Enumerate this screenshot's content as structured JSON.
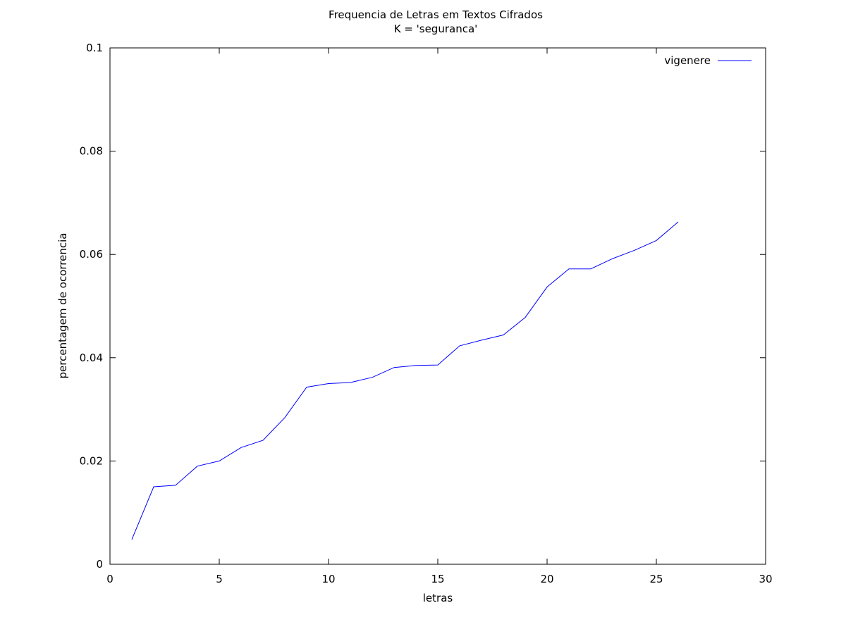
{
  "chart_data": {
    "type": "line",
    "title": "Frequencia de Letras em Textos Cifrados",
    "subtitle": "K = 'seguranca'",
    "xlabel": "letras",
    "ylabel": "percentagem de ocorrencia",
    "xlim": [
      0,
      30
    ],
    "ylim": [
      0,
      0.1
    ],
    "xticks": [
      "0",
      "5",
      "10",
      "15",
      "20",
      "25",
      "30"
    ],
    "yticks": [
      "0",
      "0.02",
      "0.04",
      "0.06",
      "0.08",
      "0.1"
    ],
    "grid": false,
    "legend_position": "top-right",
    "series": [
      {
        "name": "vigenere",
        "color": "#0000ff",
        "x": [
          1,
          2,
          3,
          4,
          5,
          6,
          7,
          8,
          9,
          10,
          11,
          12,
          13,
          14,
          15,
          16,
          17,
          18,
          19,
          20,
          21,
          22,
          23,
          24,
          25,
          26
        ],
        "y": [
          0.0048,
          0.015,
          0.0153,
          0.019,
          0.02,
          0.0226,
          0.024,
          0.0284,
          0.0343,
          0.035,
          0.0352,
          0.0362,
          0.0381,
          0.0385,
          0.0386,
          0.0423,
          0.0434,
          0.0444,
          0.0478,
          0.0537,
          0.0572,
          0.0572,
          0.0592,
          0.0608,
          0.0627,
          0.0663
        ]
      }
    ]
  }
}
